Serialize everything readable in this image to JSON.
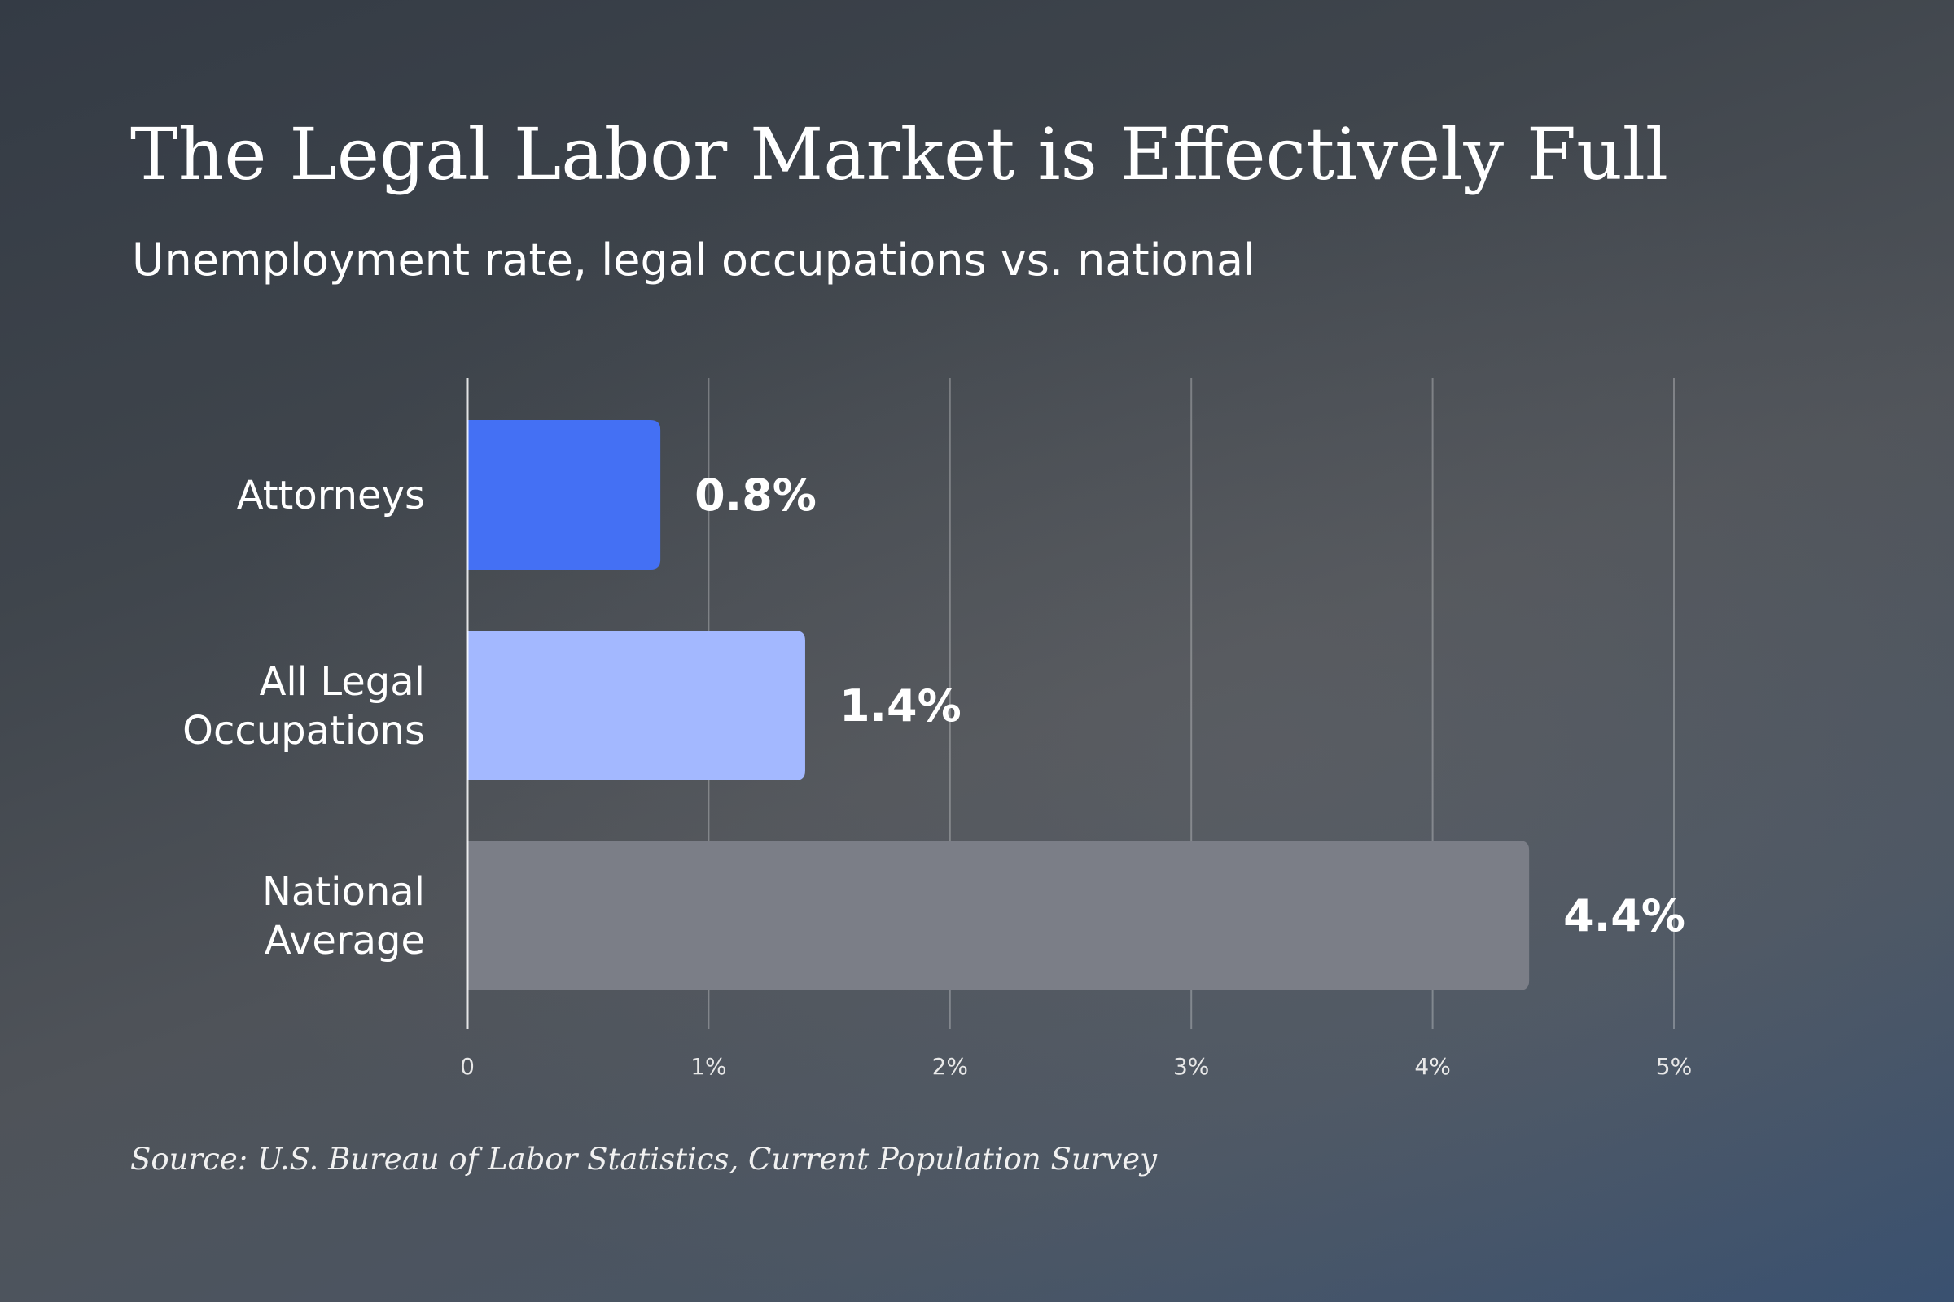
{
  "header": {
    "title": "The Legal Labor Market is Effectively Full",
    "subtitle": "Unemployment rate, legal occupations vs. national"
  },
  "footer": {
    "source": "Source: U.S. Bureau of Labor Statistics, Current Population Survey"
  },
  "chart_data": {
    "type": "bar",
    "orientation": "horizontal",
    "title": "The Legal Labor Market is Effectively Full",
    "subtitle": "Unemployment rate, legal occupations vs. national",
    "categories": [
      [
        "Attorneys"
      ],
      [
        "All Legal",
        "Occupations"
      ],
      [
        "National",
        "Average"
      ]
    ],
    "values": [
      0.8,
      1.4,
      4.4
    ],
    "value_labels": [
      "0.8%",
      "1.4%",
      "4.4%"
    ],
    "bar_colors": [
      "#4470f4",
      "#a3b8ff",
      "#7b7e87"
    ],
    "xlim": [
      0,
      5
    ],
    "ticks": [
      0,
      1,
      2,
      3,
      4,
      5
    ],
    "tick_labels": [
      "0",
      "1%",
      "2%",
      "3%",
      "4%",
      "5%"
    ],
    "grid": true,
    "legend": "none",
    "xlabel": "",
    "ylabel": ""
  }
}
